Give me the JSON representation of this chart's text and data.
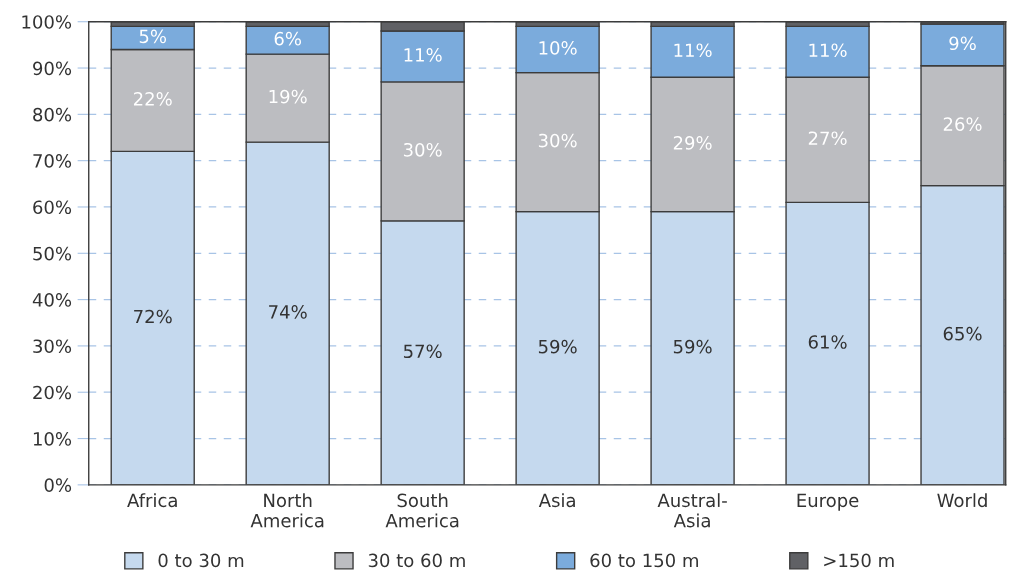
{
  "chart_data": {
    "type": "bar",
    "stacked": true,
    "categories": [
      "Africa",
      "North\nAmerica",
      "South\nAmerica",
      "Asia",
      "Austral-\nAsia",
      "Europe",
      "World"
    ],
    "series": [
      {
        "name": "0 to 30 m",
        "color": "#c5d9ee",
        "values": [
          72,
          74,
          57,
          59,
          59,
          61,
          64.6
        ],
        "value_labels": [
          "72%",
          "74%",
          "57%",
          "59%",
          "59%",
          "61%",
          "65%"
        ]
      },
      {
        "name": "30 to 60 m",
        "color": "#bcbdc1",
        "values": [
          22,
          19,
          30,
          30,
          29,
          27,
          25.9
        ],
        "value_labels": [
          "22%",
          "19%",
          "30%",
          "30%",
          "29%",
          "27%",
          "26%"
        ]
      },
      {
        "name": "60 to 150 m",
        "color": "#7babdc",
        "values": [
          5,
          6,
          11,
          10,
          11,
          11,
          9
        ],
        "value_labels": [
          "5%",
          "6%",
          "11%",
          "10%",
          "11%",
          "11%",
          "9%"
        ]
      },
      {
        "name": ">150 m",
        "color": "#606165",
        "values": [
          1,
          1,
          2,
          1,
          1,
          1,
          0.5
        ]
      }
    ],
    "ylim": [
      0,
      100
    ],
    "yticks": [
      {
        "value": 0,
        "label": "0%"
      },
      {
        "value": 10,
        "label": "10%"
      },
      {
        "value": 20,
        "label": "20%"
      },
      {
        "value": 30,
        "label": "30%"
      },
      {
        "value": 40,
        "label": "40%"
      },
      {
        "value": 50,
        "label": "50%"
      },
      {
        "value": 60,
        "label": "60%"
      },
      {
        "value": 70,
        "label": "70%"
      },
      {
        "value": 80,
        "label": "80%"
      },
      {
        "value": 90,
        "label": "90%"
      },
      {
        "value": 100,
        "label": "100%"
      }
    ],
    "grid": "y",
    "legend": "bottom"
  }
}
